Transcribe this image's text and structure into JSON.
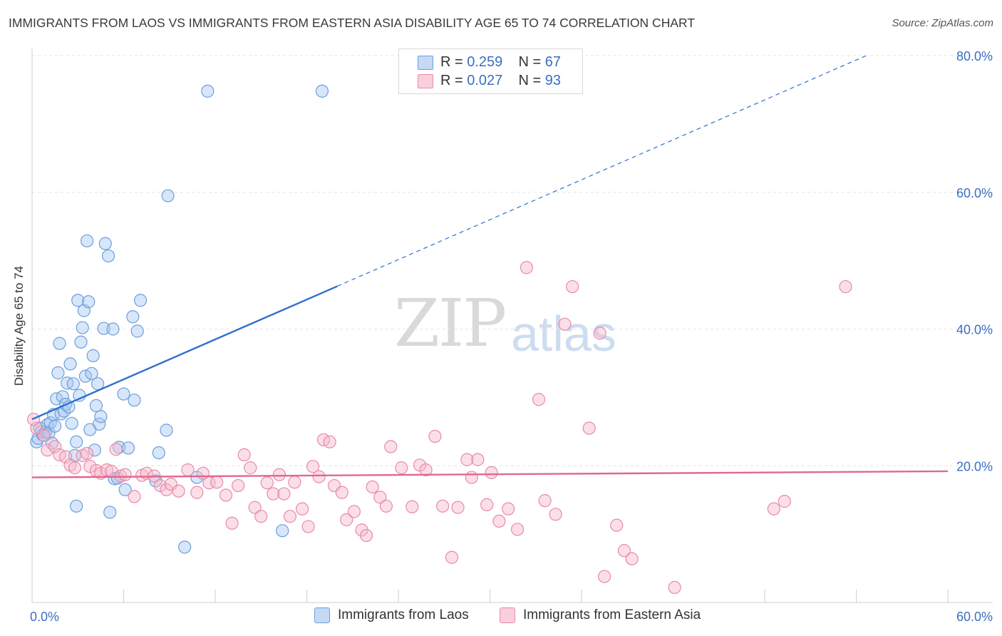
{
  "title": "IMMIGRANTS FROM LAOS VS IMMIGRANTS FROM EASTERN ASIA DISABILITY AGE 65 TO 74 CORRELATION CHART",
  "source": "Source: ZipAtlas.com",
  "watermark": {
    "zip": "ZIP",
    "atlas": "atlas"
  },
  "colors": {
    "laos_fill": "#a9c8f2",
    "laos_stroke": "#6a9fdd",
    "laos_line": "#2e6fce",
    "asia_fill": "#f6b8cc",
    "asia_stroke": "#e88aa8",
    "asia_line": "#e0688f",
    "grid": "#e4e4e4",
    "tick_text": "#3a6fc4"
  },
  "legend": {
    "laos": {
      "r_label": "R = ",
      "r_value": "0.259",
      "n_label": "N = ",
      "n_value": "67"
    },
    "asia": {
      "r_label": "R = ",
      "r_value": "0.027",
      "n_label": "N = ",
      "n_value": "93"
    }
  },
  "bottom_legend": {
    "laos": "Immigrants from Laos",
    "asia": "Immigrants from Eastern Asia"
  },
  "chart_data": {
    "type": "scatter",
    "title": "IMMIGRANTS FROM LAOS VS IMMIGRANTS FROM EASTERN ASIA DISABILITY AGE 65 TO 74 CORRELATION CHART",
    "xlabel": "",
    "ylabel": "Disability Age 65 to 74",
    "xlim": [
      0,
      60
    ],
    "ylim": [
      0,
      80
    ],
    "x_tick_labels": [
      "0.0%",
      "60.0%"
    ],
    "y_tick_values": [
      20,
      40,
      60,
      80
    ],
    "y_tick_labels": [
      "20.0%",
      "40.0%",
      "60.0%",
      "80.0%"
    ],
    "grid": true,
    "series": [
      {
        "name": "Immigrants from Laos",
        "key": "laos",
        "r": 0.259,
        "n": 67,
        "trend": {
          "x0": 0,
          "y0": 26.8,
          "x1": 60,
          "y1": 85.2,
          "solid_until_x": 20
        },
        "points": [
          [
            0.3,
            23.5
          ],
          [
            0.4,
            24.0
          ],
          [
            0.5,
            25.5
          ],
          [
            0.6,
            25.0
          ],
          [
            0.7,
            24.5
          ],
          [
            0.9,
            25.0
          ],
          [
            1.0,
            26.0
          ],
          [
            1.1,
            24.8
          ],
          [
            1.2,
            26.3
          ],
          [
            1.3,
            23.3
          ],
          [
            1.4,
            27.5
          ],
          [
            1.5,
            25.8
          ],
          [
            1.6,
            29.8
          ],
          [
            1.7,
            33.6
          ],
          [
            1.8,
            37.9
          ],
          [
            1.9,
            27.6
          ],
          [
            2.0,
            30.1
          ],
          [
            2.1,
            28.0
          ],
          [
            2.2,
            29.0
          ],
          [
            2.3,
            32.1
          ],
          [
            2.4,
            28.6
          ],
          [
            2.5,
            34.9
          ],
          [
            2.6,
            26.2
          ],
          [
            2.7,
            32.0
          ],
          [
            2.8,
            21.5
          ],
          [
            2.9,
            23.5
          ],
          [
            3.0,
            44.2
          ],
          [
            3.1,
            30.3
          ],
          [
            3.2,
            38.1
          ],
          [
            3.3,
            40.2
          ],
          [
            3.4,
            42.7
          ],
          [
            3.5,
            33.1
          ],
          [
            3.6,
            52.9
          ],
          [
            3.7,
            44.0
          ],
          [
            3.8,
            25.3
          ],
          [
            3.9,
            33.5
          ],
          [
            4.0,
            36.1
          ],
          [
            4.1,
            22.3
          ],
          [
            4.2,
            28.8
          ],
          [
            4.3,
            32.0
          ],
          [
            4.4,
            26.1
          ],
          [
            4.5,
            27.2
          ],
          [
            4.7,
            40.1
          ],
          [
            4.8,
            52.5
          ],
          [
            5.0,
            50.7
          ],
          [
            5.1,
            13.2
          ],
          [
            5.3,
            40.0
          ],
          [
            5.4,
            18.1
          ],
          [
            5.6,
            18.2
          ],
          [
            5.7,
            22.7
          ],
          [
            6.0,
            30.5
          ],
          [
            6.1,
            16.5
          ],
          [
            6.3,
            22.6
          ],
          [
            6.6,
            41.8
          ],
          [
            6.7,
            29.6
          ],
          [
            6.9,
            39.7
          ],
          [
            7.1,
            44.2
          ],
          [
            8.1,
            17.8
          ],
          [
            8.3,
            21.9
          ],
          [
            8.8,
            25.2
          ],
          [
            8.9,
            59.5
          ],
          [
            10.0,
            8.1
          ],
          [
            10.8,
            18.3
          ],
          [
            11.5,
            74.8
          ],
          [
            2.9,
            14.1
          ],
          [
            16.4,
            10.5
          ],
          [
            19.0,
            74.8
          ]
        ]
      },
      {
        "name": "Immigrants from Eastern Asia",
        "key": "asia",
        "r": 0.027,
        "n": 93,
        "trend": {
          "x0": 0,
          "y0": 18.3,
          "x1": 60,
          "y1": 19.2
        },
        "points": [
          [
            0.3,
            25.5
          ],
          [
            0.8,
            24.4
          ],
          [
            1.0,
            22.3
          ],
          [
            1.5,
            22.8
          ],
          [
            1.8,
            21.6
          ],
          [
            2.2,
            21.3
          ],
          [
            2.5,
            20.1
          ],
          [
            2.8,
            19.7
          ],
          [
            3.3,
            21.5
          ],
          [
            3.6,
            21.8
          ],
          [
            3.8,
            19.9
          ],
          [
            4.2,
            19.3
          ],
          [
            4.5,
            18.9
          ],
          [
            4.9,
            19.4
          ],
          [
            5.2,
            19.2
          ],
          [
            5.5,
            22.4
          ],
          [
            5.8,
            18.5
          ],
          [
            6.1,
            18.7
          ],
          [
            6.7,
            15.5
          ],
          [
            7.2,
            18.6
          ],
          [
            7.5,
            18.9
          ],
          [
            8.0,
            18.5
          ],
          [
            8.4,
            17.1
          ],
          [
            8.8,
            16.5
          ],
          [
            9.1,
            17.3
          ],
          [
            9.6,
            16.3
          ],
          [
            10.2,
            19.4
          ],
          [
            10.8,
            16.1
          ],
          [
            11.2,
            18.9
          ],
          [
            11.6,
            17.5
          ],
          [
            12.1,
            17.6
          ],
          [
            12.7,
            15.7
          ],
          [
            13.1,
            11.6
          ],
          [
            13.5,
            17.1
          ],
          [
            13.9,
            21.6
          ],
          [
            14.3,
            19.7
          ],
          [
            14.6,
            13.9
          ],
          [
            15.0,
            12.6
          ],
          [
            15.4,
            17.5
          ],
          [
            15.8,
            15.9
          ],
          [
            16.2,
            18.7
          ],
          [
            16.5,
            15.9
          ],
          [
            16.9,
            12.6
          ],
          [
            17.2,
            17.6
          ],
          [
            17.7,
            13.7
          ],
          [
            18.1,
            11.1
          ],
          [
            18.4,
            19.9
          ],
          [
            18.8,
            18.4
          ],
          [
            19.1,
            23.8
          ],
          [
            19.5,
            23.5
          ],
          [
            19.8,
            17.1
          ],
          [
            20.3,
            16.1
          ],
          [
            20.6,
            12.1
          ],
          [
            21.1,
            13.3
          ],
          [
            21.6,
            10.6
          ],
          [
            21.9,
            9.8
          ],
          [
            22.3,
            16.9
          ],
          [
            22.8,
            15.4
          ],
          [
            23.2,
            14.1
          ],
          [
            23.5,
            22.8
          ],
          [
            24.2,
            19.7
          ],
          [
            24.9,
            14.0
          ],
          [
            25.4,
            20.1
          ],
          [
            25.8,
            19.4
          ],
          [
            26.4,
            24.3
          ],
          [
            26.9,
            14.1
          ],
          [
            27.5,
            6.6
          ],
          [
            27.9,
            13.9
          ],
          [
            28.5,
            20.9
          ],
          [
            28.8,
            18.3
          ],
          [
            29.2,
            20.9
          ],
          [
            29.8,
            14.3
          ],
          [
            30.1,
            19.0
          ],
          [
            30.6,
            11.9
          ],
          [
            31.2,
            13.7
          ],
          [
            31.8,
            10.7
          ],
          [
            32.4,
            49.0
          ],
          [
            33.2,
            29.7
          ],
          [
            33.6,
            14.9
          ],
          [
            34.3,
            12.9
          ],
          [
            34.9,
            40.7
          ],
          [
            35.4,
            46.2
          ],
          [
            36.5,
            25.5
          ],
          [
            37.2,
            39.4
          ],
          [
            37.5,
            3.8
          ],
          [
            38.3,
            11.3
          ],
          [
            38.8,
            7.6
          ],
          [
            39.3,
            6.4
          ],
          [
            42.1,
            2.2
          ],
          [
            48.6,
            13.7
          ],
          [
            49.3,
            14.8
          ],
          [
            53.3,
            46.2
          ],
          [
            0.1,
            26.8
          ]
        ]
      }
    ]
  }
}
